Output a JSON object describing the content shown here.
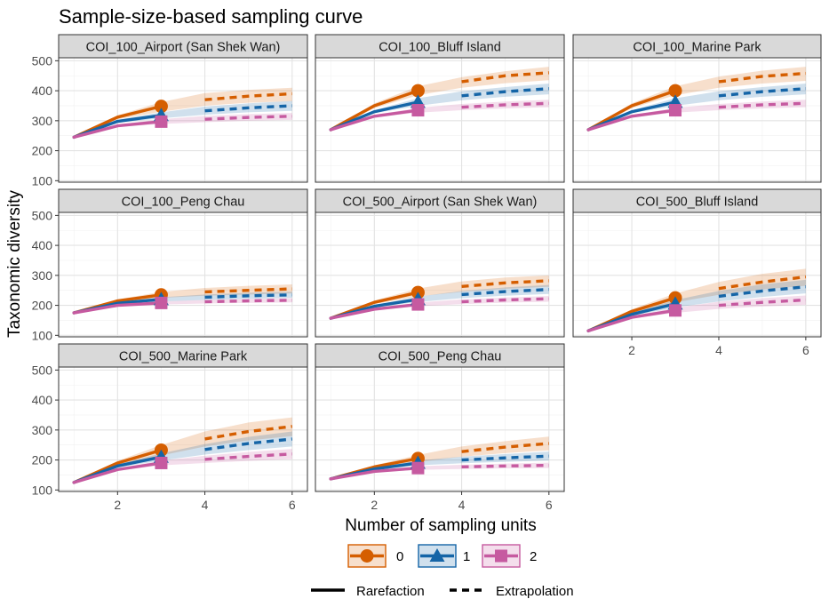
{
  "chart_data": {
    "type": "line",
    "title": "Sample-size-based sampling curve",
    "xlabel": "Number of sampling units",
    "ylabel": "Taxonomic diversity",
    "xlim": [
      0.65,
      6.35
    ],
    "ylim": [
      95,
      510
    ],
    "x_ticks": [
      2,
      4,
      6
    ],
    "y_ticks": [
      100,
      200,
      300,
      400,
      500
    ],
    "grid": true,
    "colors": {
      "0": "#D55E00",
      "1": "#1565a7",
      "2": "#C65AA0"
    },
    "order_legend": {
      "labels": [
        "0",
        "1",
        "2"
      ],
      "colors": [
        "#D55E00",
        "#1565a7",
        "#C65AA0"
      ]
    },
    "method_legend": {
      "labels": [
        "Rarefaction",
        "Extrapolation"
      ]
    },
    "panels": [
      {
        "name": "COI_100_Airport (San Shek Wan)",
        "series": [
          {
            "order": "0",
            "values": [
              245,
              312,
              348,
              370,
              382,
              390
            ],
            "lower": [
              245,
              305,
              330,
              350,
              360,
              365
            ],
            "upper": [
              245,
              318,
              362,
              392,
              403,
              410
            ]
          },
          {
            "order": "1",
            "values": [
              245,
              298,
              318,
              333,
              343,
              350
            ],
            "lower": [
              245,
              293,
              308,
              320,
              328,
              333
            ],
            "upper": [
              245,
              303,
              328,
              347,
              358,
              366
            ]
          },
          {
            "order": "2",
            "values": [
              245,
              283,
              297,
              305,
              311,
              315
            ],
            "lower": [
              245,
              279,
              289,
              295,
              300,
              303
            ],
            "upper": [
              245,
              287,
              305,
              316,
              322,
              326
            ]
          }
        ]
      },
      {
        "name": "COI_100_Bluff Island",
        "series": [
          {
            "order": "0",
            "values": [
              270,
              350,
              400,
              430,
              450,
              460
            ],
            "lower": [
              270,
              342,
              385,
              410,
              425,
              435
            ],
            "upper": [
              270,
              358,
              415,
              445,
              465,
              480
            ]
          },
          {
            "order": "1",
            "values": [
              270,
              330,
              362,
              383,
              397,
              407
            ],
            "lower": [
              270,
              325,
              350,
              368,
              380,
              388
            ],
            "upper": [
              270,
              335,
              375,
              398,
              412,
              424
            ]
          },
          {
            "order": "2",
            "values": [
              270,
              315,
              335,
              345,
              353,
              358
            ],
            "lower": [
              270,
              311,
              327,
              335,
              341,
              345
            ],
            "upper": [
              270,
              319,
              343,
              356,
              364,
              370
            ]
          }
        ]
      },
      {
        "name": "COI_100_Marine Park",
        "series": [
          {
            "order": "0",
            "values": [
              270,
              350,
              400,
              430,
              448,
              458
            ],
            "lower": [
              270,
              342,
              385,
              410,
              424,
              433
            ],
            "upper": [
              270,
              358,
              415,
              447,
              467,
              480
            ]
          },
          {
            "order": "1",
            "values": [
              270,
              330,
              362,
              383,
              397,
              407
            ],
            "lower": [
              270,
              325,
              350,
              368,
              380,
              388
            ],
            "upper": [
              270,
              335,
              375,
              398,
              412,
              424
            ]
          },
          {
            "order": "2",
            "values": [
              270,
              315,
              335,
              345,
              353,
              358
            ],
            "lower": [
              270,
              311,
              327,
              335,
              341,
              345
            ],
            "upper": [
              270,
              319,
              343,
              356,
              364,
              370
            ]
          }
        ]
      },
      {
        "name": "COI_100_Peng Chau",
        "series": [
          {
            "order": "0",
            "values": [
              175,
              215,
              235,
              245,
              250,
              255
            ],
            "lower": [
              175,
              210,
              225,
              232,
              236,
              240
            ],
            "upper": [
              175,
              220,
              245,
              258,
              265,
              270
            ]
          },
          {
            "order": "1",
            "values": [
              175,
              207,
              220,
              227,
              232,
              235
            ],
            "lower": [
              175,
              203,
              213,
              218,
              222,
              225
            ],
            "upper": [
              175,
              211,
              227,
              236,
              242,
              246
            ]
          },
          {
            "order": "2",
            "values": [
              175,
              200,
              208,
              212,
              215,
              217
            ],
            "lower": [
              175,
              197,
              203,
              206,
              208,
              210
            ],
            "upper": [
              175,
              203,
              213,
              218,
              222,
              224
            ]
          }
        ]
      },
      {
        "name": "COI_500_Airport (San Shek Wan)",
        "series": [
          {
            "order": "0",
            "values": [
              157,
              210,
              243,
              263,
              275,
              282
            ],
            "lower": [
              157,
              204,
              230,
              245,
              255,
              262
            ],
            "upper": [
              157,
              216,
              256,
              280,
              293,
              300
            ]
          },
          {
            "order": "1",
            "values": [
              157,
              197,
              220,
              236,
              246,
              253
            ],
            "lower": [
              157,
              193,
              211,
              224,
              232,
              238
            ],
            "upper": [
              157,
              201,
              229,
              248,
              260,
              268
            ]
          },
          {
            "order": "2",
            "values": [
              157,
              187,
              203,
              212,
              218,
              222
            ],
            "lower": [
              157,
              184,
              197,
              204,
              209,
              212
            ],
            "upper": [
              157,
              190,
              209,
              220,
              226,
              231
            ]
          }
        ]
      },
      {
        "name": "COI_500_Bluff Island",
        "series": [
          {
            "order": "0",
            "values": [
              115,
              180,
              225,
              256,
              278,
              295
            ],
            "lower": [
              115,
              173,
              210,
              235,
              253,
              265
            ],
            "upper": [
              115,
              187,
              240,
              278,
              305,
              322
            ]
          },
          {
            "order": "1",
            "values": [
              115,
              170,
              205,
              230,
              248,
              262
            ],
            "lower": [
              115,
              165,
              193,
              213,
              228,
              240
            ],
            "upper": [
              115,
              175,
              218,
              248,
              270,
              285
            ]
          },
          {
            "order": "2",
            "values": [
              115,
              160,
              183,
              200,
              210,
              218
            ],
            "lower": [
              115,
              156,
              175,
              188,
              196,
              202
            ],
            "upper": [
              115,
              164,
              192,
              212,
              224,
              233
            ]
          }
        ]
      },
      {
        "name": "COI_500_Marine Park",
        "series": [
          {
            "order": "0",
            "values": [
              125,
              190,
              233,
              270,
              295,
              312
            ],
            "lower": [
              125,
              183,
              215,
              245,
              265,
              280
            ],
            "upper": [
              125,
              197,
              250,
              295,
              325,
              342
            ]
          },
          {
            "order": "1",
            "values": [
              125,
              180,
              210,
              235,
              255,
              270
            ],
            "lower": [
              125,
              175,
              198,
              218,
              233,
              245
            ],
            "upper": [
              125,
              185,
              222,
              253,
              277,
              295
            ]
          },
          {
            "order": "2",
            "values": [
              125,
              168,
              190,
              202,
              212,
              220
            ],
            "lower": [
              125,
              164,
              182,
              190,
              197,
              203
            ],
            "upper": [
              125,
              172,
              198,
              214,
              227,
              237
            ]
          }
        ]
      },
      {
        "name": "COI_500_Peng Chau",
        "series": [
          {
            "order": "0",
            "values": [
              137,
              177,
              205,
              228,
              243,
              255
            ],
            "lower": [
              137,
              172,
              193,
              211,
              223,
              232
            ],
            "upper": [
              137,
              182,
              217,
              245,
              263,
              278
            ]
          },
          {
            "order": "1",
            "values": [
              137,
              170,
              190,
              200,
              207,
              213
            ],
            "lower": [
              137,
              166,
              182,
              189,
              194,
              198
            ],
            "upper": [
              137,
              174,
              198,
              211,
              220,
              228
            ]
          },
          {
            "order": "2",
            "values": [
              137,
              162,
              173,
              177,
              180,
              182
            ],
            "lower": [
              137,
              159,
              167,
              170,
              172,
              173
            ],
            "upper": [
              137,
              165,
              179,
              184,
              188,
              191
            ]
          }
        ]
      }
    ]
  }
}
